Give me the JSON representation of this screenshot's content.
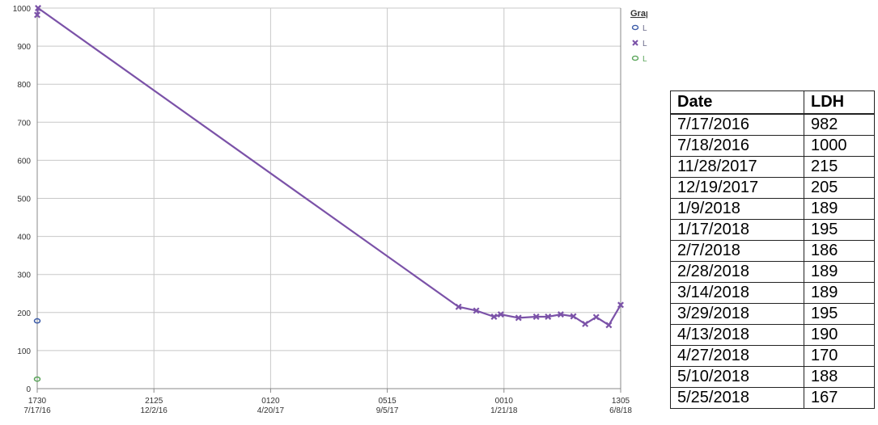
{
  "chart_data": {
    "type": "line",
    "ylim": [
      0,
      1000
    ],
    "y_ticks": [
      "0",
      "100",
      "200",
      "300",
      "400",
      "500",
      "600",
      "700",
      "800",
      "900",
      "1000"
    ],
    "x_ticks": [
      {
        "time": "1730",
        "date": "7/17/16"
      },
      {
        "time": "2125",
        "date": "12/2/16"
      },
      {
        "time": "0120",
        "date": "4/20/17"
      },
      {
        "time": "0515",
        "date": "9/5/17"
      },
      {
        "time": "0010",
        "date": "1/21/18"
      },
      {
        "time": "1305",
        "date": "6/8/18"
      }
    ],
    "grid": true,
    "legend": {
      "title": "Graph Legend",
      "position": "right",
      "entries": [
        "LDH (High)",
        "LDH",
        "LDH (Low)"
      ]
    },
    "series": [
      {
        "name": "LDH",
        "color": "#7b52a8",
        "points": [
          {
            "x": "2016-07-17",
            "y": 982
          },
          {
            "x": "2016-07-18",
            "y": 1000
          },
          {
            "x": "2017-11-28",
            "y": 215
          },
          {
            "x": "2017-12-19",
            "y": 205
          },
          {
            "x": "2018-01-09",
            "y": 189
          },
          {
            "x": "2018-01-17",
            "y": 195
          },
          {
            "x": "2018-02-07",
            "y": 186
          },
          {
            "x": "2018-02-28",
            "y": 189
          },
          {
            "x": "2018-03-14",
            "y": 189
          },
          {
            "x": "2018-03-29",
            "y": 195
          },
          {
            "x": "2018-04-13",
            "y": 190
          },
          {
            "x": "2018-04-27",
            "y": 170
          },
          {
            "x": "2018-05-10",
            "y": 188
          },
          {
            "x": "2018-05-25",
            "y": 167
          },
          {
            "x": "2018-06-08",
            "y": 220
          }
        ]
      },
      {
        "name": "LDH (High)",
        "color": "#3b5ba8",
        "points": [
          {
            "x": "2016-07-17",
            "y": 178
          }
        ]
      },
      {
        "name": "LDH (Low)",
        "color": "#5aa55a",
        "points": [
          {
            "x": "2016-07-17",
            "y": 25
          }
        ]
      }
    ]
  },
  "table": {
    "headers": [
      "Date",
      "LDH"
    ],
    "rows": [
      [
        "7/17/2016",
        "982"
      ],
      [
        "7/18/2016",
        "1000"
      ],
      [
        "11/28/2017",
        "215"
      ],
      [
        "12/19/2017",
        "205"
      ],
      [
        "1/9/2018",
        "189"
      ],
      [
        "1/17/2018",
        "195"
      ],
      [
        "2/7/2018",
        "186"
      ],
      [
        "2/28/2018",
        "189"
      ],
      [
        "3/14/2018",
        "189"
      ],
      [
        "3/29/2018",
        "195"
      ],
      [
        "4/13/2018",
        "190"
      ],
      [
        "4/27/2018",
        "170"
      ],
      [
        "5/10/2018",
        "188"
      ],
      [
        "5/25/2018",
        "167"
      ]
    ]
  }
}
